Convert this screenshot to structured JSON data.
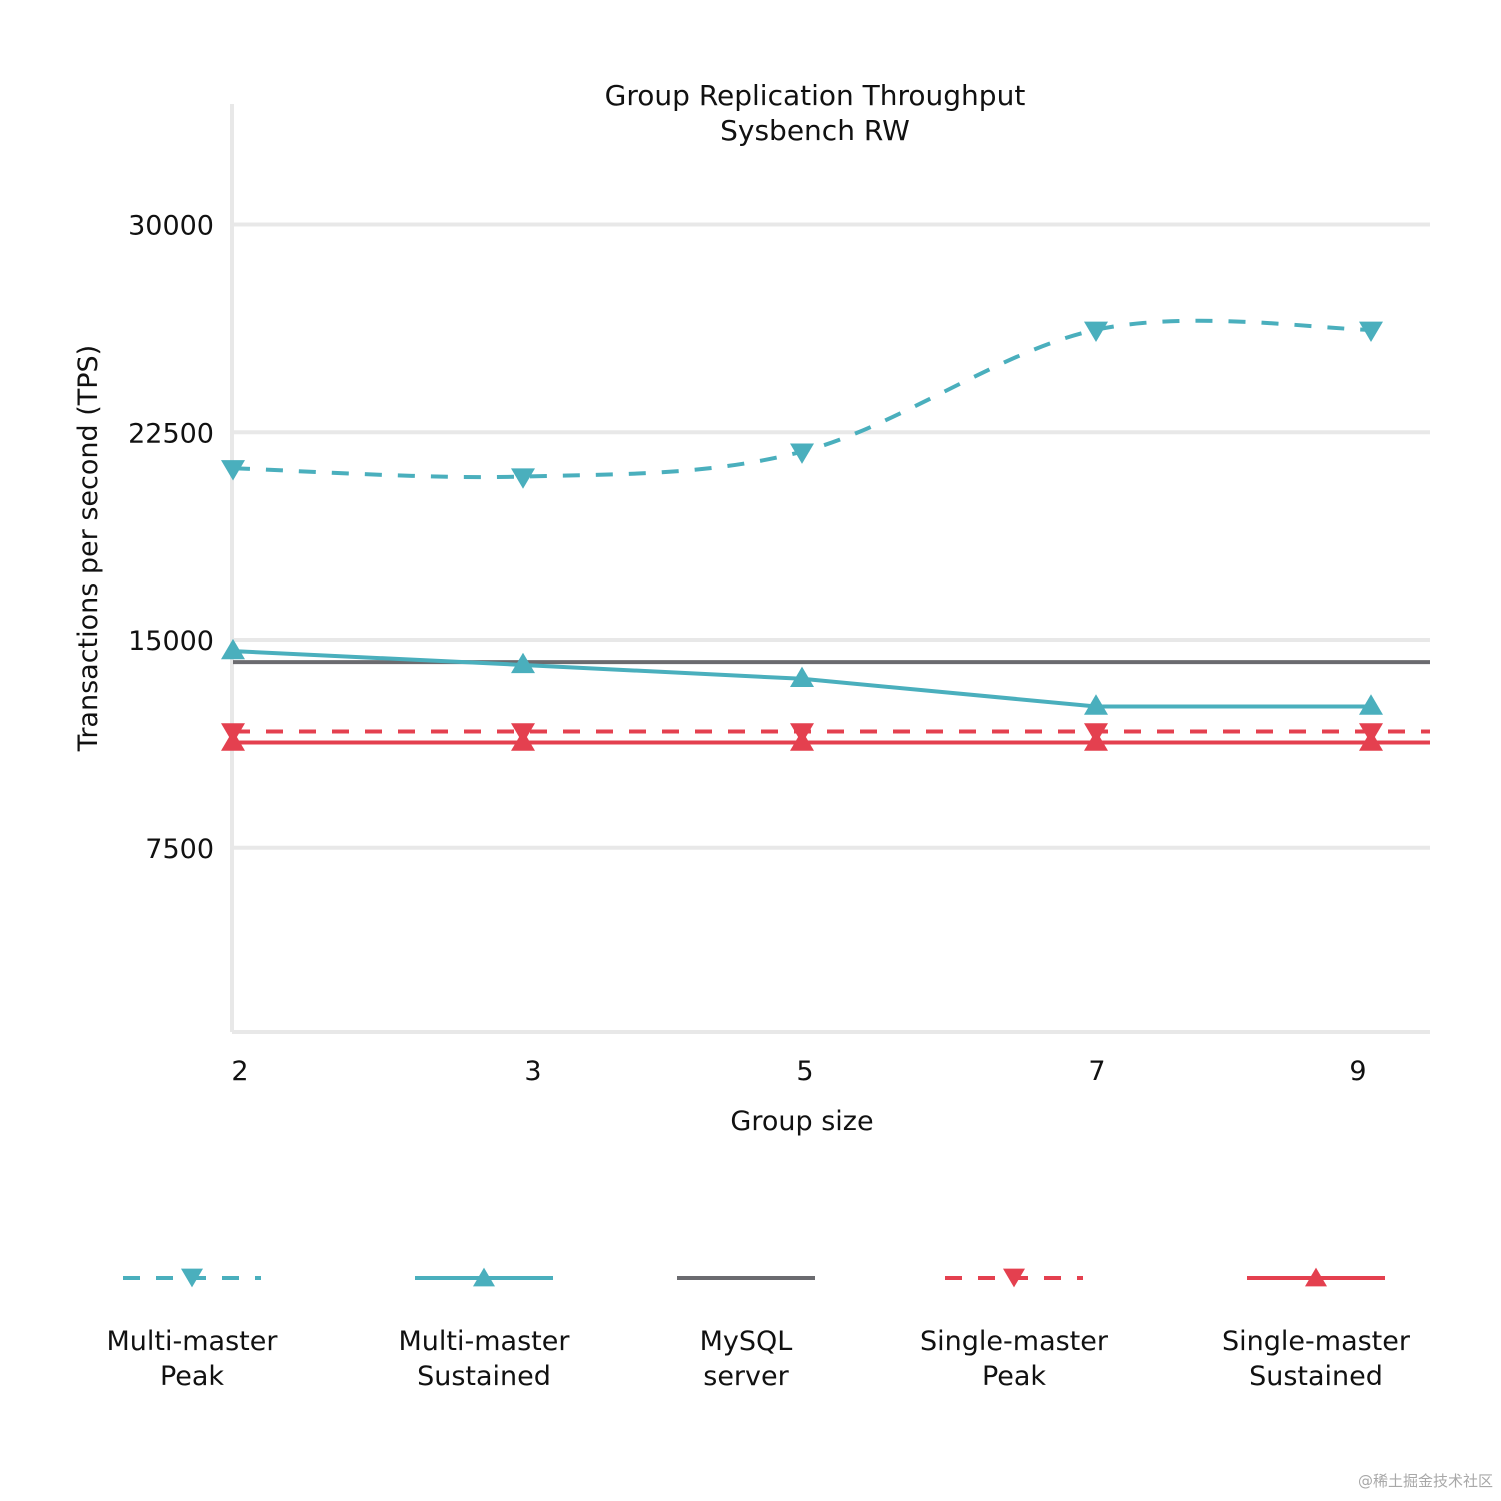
{
  "chart_data": {
    "type": "line",
    "title": "Group Replication Throughput",
    "subtitle": "Sysbench RW",
    "xlabel": "Group size",
    "ylabel": "Transactions per second (TPS)",
    "categories": [
      "2",
      "3",
      "5",
      "7",
      "9"
    ],
    "yticks": [
      7500,
      15000,
      22500,
      30000
    ],
    "ytick_labels": [
      "7500",
      "15000",
      "22500",
      "30000"
    ],
    "ylim": [
      850,
      34350
    ],
    "grid": true,
    "legend_position": "bottom",
    "series": [
      {
        "name": "Multi-master Peak",
        "label_lines": [
          "Multi-master",
          "Peak"
        ],
        "color": "#4aafbd",
        "style": "dashed",
        "marker": "triangle-down",
        "values": [
          21200,
          20900,
          21800,
          26200,
          26200
        ]
      },
      {
        "name": "Multi-master Sustained",
        "label_lines": [
          "Multi-master",
          "Sustained"
        ],
        "color": "#4aafbd",
        "style": "solid",
        "marker": "triangle-up",
        "values": [
          14600,
          14100,
          13600,
          12600,
          12600
        ]
      },
      {
        "name": "MySQL server",
        "label_lines": [
          "MySQL",
          "server"
        ],
        "color": "#6b6b6f",
        "style": "solid",
        "marker": "none",
        "values": [
          14200,
          14200,
          14200,
          14200,
          14200
        ]
      },
      {
        "name": "Single-master Peak",
        "label_lines": [
          "Single-master",
          "Peak"
        ],
        "color": "#e4404f",
        "style": "dashed",
        "marker": "triangle-down",
        "values": [
          11700,
          11700,
          11700,
          11700,
          11700
        ]
      },
      {
        "name": "Single-master Sustained",
        "label_lines": [
          "Single-master",
          "Sustained"
        ],
        "color": "#e4404f",
        "style": "solid",
        "marker": "triangle-up",
        "values": [
          11300,
          11300,
          11300,
          11300,
          11300
        ]
      }
    ]
  },
  "watermark": "@稀土掘金技术社区"
}
